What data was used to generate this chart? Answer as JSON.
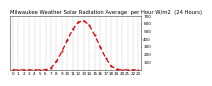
{
  "title": "Milwaukee Weather Solar Radiation Average  per Hour W/m2  (24 Hours)",
  "hours": [
    0,
    1,
    2,
    3,
    4,
    5,
    6,
    7,
    8,
    9,
    10,
    11,
    12,
    13,
    14,
    15,
    16,
    17,
    18,
    19,
    20,
    21,
    22,
    23
  ],
  "values": [
    0,
    0,
    0,
    0,
    0,
    0,
    2,
    25,
    110,
    240,
    390,
    530,
    620,
    640,
    580,
    450,
    300,
    155,
    50,
    8,
    0,
    0,
    0,
    0
  ],
  "line_color": "#dd0000",
  "bg_color": "#ffffff",
  "plot_bg_color": "#ffffff",
  "grid_color": "#999999",
  "ylim": [
    0,
    700
  ],
  "yticks": [
    100,
    200,
    300,
    400,
    500,
    600,
    700
  ],
  "title_fontsize": 3.8,
  "tick_fontsize": 3.0,
  "line_width": 0.9
}
